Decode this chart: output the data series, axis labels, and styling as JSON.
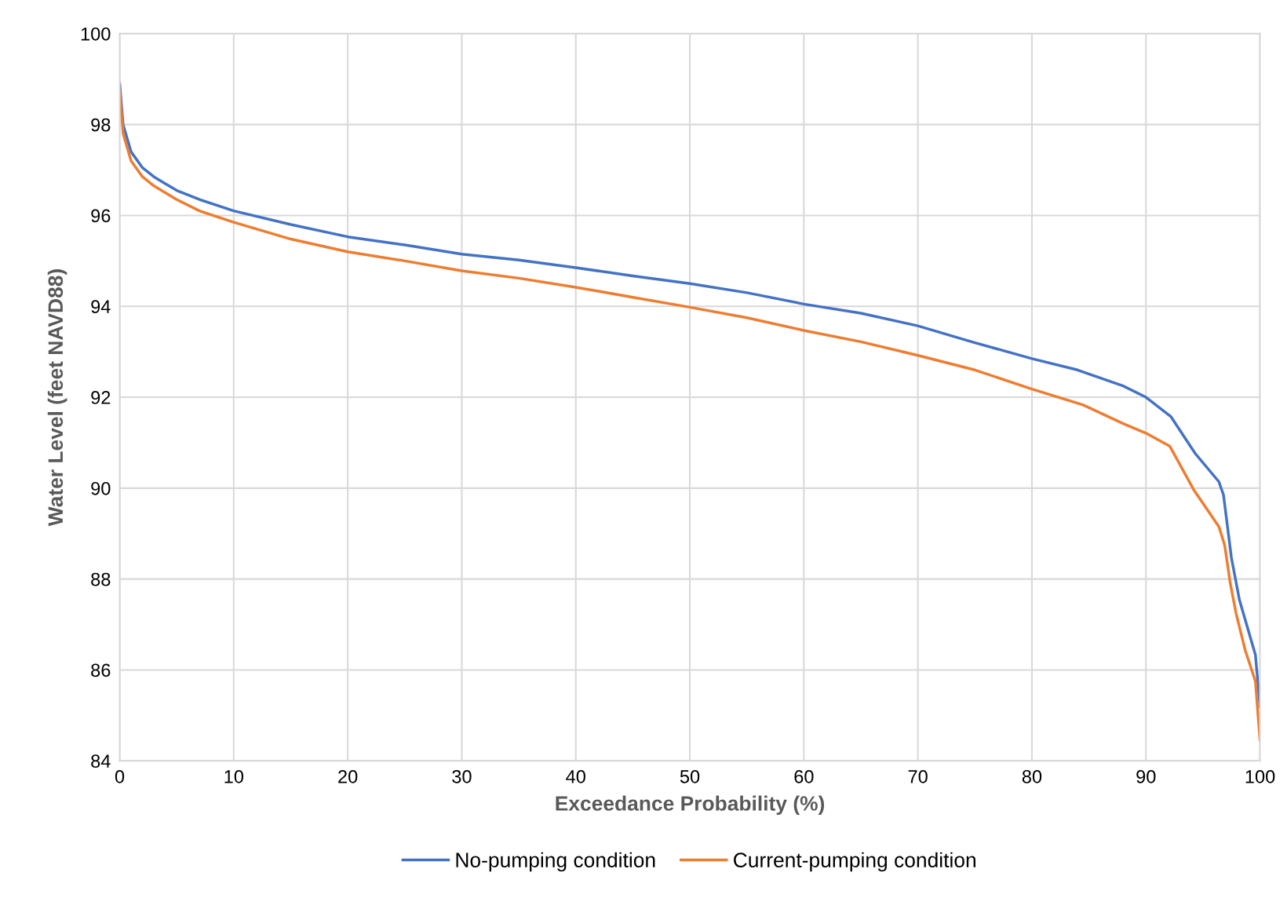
{
  "chart_data": {
    "type": "line",
    "xlabel": "Exceedance Probability (%)",
    "ylabel": "Water Level (feet NAVD88)",
    "xlim": [
      0,
      100
    ],
    "xticks": [
      0,
      10,
      20,
      30,
      40,
      50,
      60,
      70,
      80,
      90,
      100
    ],
    "ylim": [
      84,
      100
    ],
    "yticks": [
      84,
      86,
      88,
      90,
      92,
      94,
      96,
      98,
      100
    ],
    "grid": true,
    "legend": "bottom",
    "marker": "none",
    "line_style": "solid",
    "series": [
      {
        "name": "No-pumping condition",
        "color": "#4472c4",
        "x": [
          0,
          0.3,
          1,
          2,
          3,
          4,
          5,
          7,
          10,
          15,
          20,
          25,
          30,
          35,
          40,
          45,
          50,
          55,
          60,
          65,
          70,
          75,
          80,
          84,
          88,
          90,
          92.2,
          94.3,
          96.4,
          96.8,
          97.5,
          98.2,
          99.6,
          100
        ],
        "values": [
          98.9,
          98.0,
          97.4,
          97.05,
          96.85,
          96.7,
          96.55,
          96.35,
          96.1,
          95.8,
          95.53,
          95.35,
          95.15,
          95.02,
          94.85,
          94.67,
          94.5,
          94.3,
          94.05,
          93.85,
          93.57,
          93.2,
          92.85,
          92.6,
          92.25,
          92.0,
          91.57,
          90.77,
          90.14,
          89.85,
          88.46,
          87.54,
          86.33,
          85.2
        ]
      },
      {
        "name": "Current-pumping condition",
        "color": "#ed7d31",
        "x": [
          0,
          0.3,
          1,
          2,
          3,
          4,
          5,
          7,
          10,
          15,
          20,
          25,
          30,
          35,
          40,
          45,
          50,
          55,
          60,
          65,
          70,
          75,
          80,
          84.5,
          88,
          90,
          92.1,
          94.2,
          96.4,
          96.9,
          97.4,
          97.9,
          98.7,
          99.6,
          100
        ],
        "values": [
          98.75,
          97.8,
          97.2,
          96.85,
          96.65,
          96.5,
          96.35,
          96.1,
          95.85,
          95.48,
          95.2,
          95.0,
          94.78,
          94.62,
          94.42,
          94.2,
          93.98,
          93.75,
          93.47,
          93.22,
          92.92,
          92.6,
          92.18,
          91.83,
          91.42,
          91.21,
          90.92,
          89.96,
          89.15,
          88.75,
          87.9,
          87.25,
          86.44,
          85.75,
          84.46
        ]
      }
    ]
  }
}
